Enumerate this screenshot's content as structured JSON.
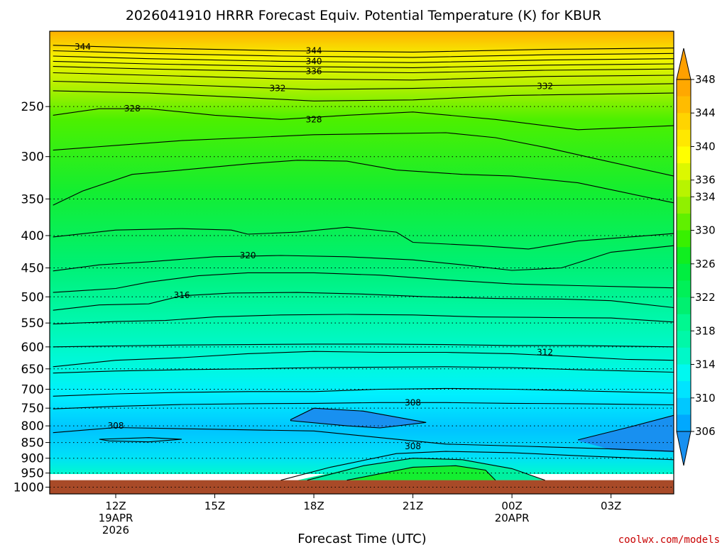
{
  "chart_data": {
    "type": "heatmap",
    "title": "2026041910 HRRR Forecast Equiv. Potential Temperature (K) for KBUR",
    "xlabel": "Forecast Time (UTC)",
    "ylabel": "",
    "credit": "coolwx.com/models",
    "x_ticks": [
      {
        "label": "12Z",
        "sub1": "19APR",
        "sub2": "2026",
        "hour": 12
      },
      {
        "label": "15Z",
        "sub1": "",
        "sub2": "",
        "hour": 15
      },
      {
        "label": "18Z",
        "sub1": "",
        "sub2": "",
        "hour": 18
      },
      {
        "label": "21Z",
        "sub1": "",
        "sub2": "",
        "hour": 21
      },
      {
        "label": "00Z",
        "sub1": "20APR",
        "sub2": "",
        "hour": 24
      },
      {
        "label": "03Z",
        "sub1": "",
        "sub2": "",
        "hour": 27
      }
    ],
    "xlim": [
      10,
      28.9
    ],
    "y_ticks": [
      250,
      300,
      350,
      400,
      450,
      500,
      550,
      600,
      650,
      700,
      750,
      800,
      850,
      900,
      950,
      1000
    ],
    "y_tick_labels": [
      "250",
      "300",
      "350",
      "400",
      "450",
      "500",
      "550",
      "600",
      "650",
      "700",
      "750",
      "800",
      "850",
      "900",
      "950",
      "1000"
    ],
    "ylim": [
      190,
      1025
    ],
    "y_scale": "log",
    "surface_pressure": 975,
    "grid": "dotted",
    "colorbar": {
      "levels": [
        306,
        308,
        310,
        312,
        314,
        316,
        318,
        320,
        322,
        324,
        326,
        328,
        330,
        332,
        334,
        336,
        338,
        340,
        342,
        344,
        346,
        348
      ],
      "labels": [
        "306",
        "310",
        "314",
        "318",
        "322",
        "326",
        "330",
        "334",
        "336",
        "340",
        "344",
        "348"
      ],
      "colors": [
        "#00a8ff",
        "#00c8ff",
        "#00e4ff",
        "#00f8f0",
        "#00f8c8",
        "#00f8a8",
        "#00f890",
        "#00f070",
        "#00f058",
        "#00ee40",
        "#10ee20",
        "#38f000",
        "#60f000",
        "#90f000",
        "#b8f400",
        "#dcf800",
        "#ffff00",
        "#ffe800",
        "#ffd400",
        "#ffbc00",
        "#ffa800"
      ],
      "below_color": "#1890f0",
      "above_color": "#ffa000"
    },
    "surface_fill": "#a84a28",
    "contours": [
      {
        "value": 344,
        "label": "344",
        "points": [
          [
            10.1,
            200
          ],
          [
            13,
            202
          ],
          [
            17,
            204
          ],
          [
            21,
            205
          ],
          [
            25,
            203
          ],
          [
            28.9,
            202
          ]
        ]
      },
      {
        "value": 342,
        "label": "",
        "points": [
          [
            10.1,
            204
          ],
          [
            13,
            206
          ],
          [
            17,
            208
          ],
          [
            21,
            209
          ],
          [
            25,
            207
          ],
          [
            28.9,
            206
          ]
        ]
      },
      {
        "value": 340,
        "label": "340",
        "points": [
          [
            10.1,
            208
          ],
          [
            13,
            210
          ],
          [
            17,
            212
          ],
          [
            21,
            213
          ],
          [
            25,
            211
          ],
          [
            28.9,
            210
          ]
        ]
      },
      {
        "value": 338,
        "label": "",
        "points": [
          [
            10.1,
            212
          ],
          [
            13,
            214
          ],
          [
            17,
            216
          ],
          [
            21,
            217
          ],
          [
            25,
            215
          ],
          [
            28.9,
            214
          ]
        ]
      },
      {
        "value": 336,
        "label": "336",
        "points": [
          [
            10.1,
            216
          ],
          [
            13,
            218
          ],
          [
            17,
            220
          ],
          [
            21,
            221
          ],
          [
            25,
            219
          ],
          [
            28.9,
            218
          ]
        ]
      },
      {
        "value": 334,
        "label": "",
        "points": [
          [
            10.1,
            221
          ],
          [
            13,
            223
          ],
          [
            17,
            226
          ],
          [
            21,
            227
          ],
          [
            25,
            224
          ],
          [
            28.9,
            223
          ]
        ]
      },
      {
        "value": 332,
        "label": "332",
        "points": [
          [
            10.1,
            228
          ],
          [
            13,
            230
          ],
          [
            16,
            233
          ],
          [
            18,
            235
          ],
          [
            21,
            234
          ],
          [
            24,
            232
          ],
          [
            28.9,
            230
          ]
        ]
      },
      {
        "value": 330,
        "label": "",
        "points": [
          [
            10.1,
            236
          ],
          [
            13,
            238
          ],
          [
            16,
            242
          ],
          [
            18,
            245
          ],
          [
            21,
            244
          ],
          [
            24,
            240
          ],
          [
            28.9,
            238
          ]
        ]
      },
      {
        "value": 328,
        "label": "328",
        "points": [
          [
            10.1,
            258
          ],
          [
            11.5,
            252
          ],
          [
            13,
            252
          ],
          [
            15,
            258
          ],
          [
            17,
            262
          ],
          [
            19,
            258
          ],
          [
            21,
            255
          ],
          [
            23.5,
            262
          ],
          [
            26,
            272
          ],
          [
            28.9,
            268
          ]
        ]
      },
      {
        "value": 326,
        "label": "",
        "points": [
          [
            10.1,
            293
          ],
          [
            12,
            288
          ],
          [
            14,
            283
          ],
          [
            16,
            280
          ],
          [
            18,
            277
          ],
          [
            20,
            276
          ],
          [
            22,
            275
          ],
          [
            23.5,
            280
          ],
          [
            25,
            290
          ],
          [
            26.5,
            302
          ],
          [
            28.9,
            322
          ]
        ]
      },
      {
        "value": 324,
        "label": "",
        "points": [
          [
            10.1,
            358
          ],
          [
            11,
            340
          ],
          [
            12.5,
            320
          ],
          [
            14,
            315
          ],
          [
            16,
            308
          ],
          [
            17.5,
            304
          ],
          [
            19,
            305
          ],
          [
            20.5,
            315
          ],
          [
            22.5,
            320
          ],
          [
            24,
            322
          ],
          [
            26,
            330
          ],
          [
            28.9,
            355
          ]
        ]
      },
      {
        "value": 322,
        "label": "",
        "points": [
          [
            10.1,
            402
          ],
          [
            12,
            392
          ],
          [
            14,
            390
          ],
          [
            15.5,
            392
          ],
          [
            16,
            398
          ],
          [
            17.5,
            395
          ],
          [
            19,
            388
          ],
          [
            20.5,
            395
          ],
          [
            21,
            410
          ],
          [
            23,
            415
          ],
          [
            24.5,
            420
          ],
          [
            26,
            408
          ],
          [
            28.9,
            397
          ]
        ]
      },
      {
        "value": 320,
        "label": "320",
        "points": [
          [
            10.1,
            455
          ],
          [
            11.5,
            445
          ],
          [
            13,
            440
          ],
          [
            15,
            432
          ],
          [
            17,
            430
          ],
          [
            19,
            432
          ],
          [
            21,
            437
          ],
          [
            22.5,
            445
          ],
          [
            24,
            454
          ],
          [
            25.5,
            450
          ],
          [
            27,
            425
          ],
          [
            28.9,
            415
          ]
        ]
      },
      {
        "value": 318,
        "label": "",
        "points": [
          [
            10.1,
            492
          ],
          [
            12,
            485
          ],
          [
            13,
            474
          ],
          [
            14.5,
            463
          ],
          [
            16,
            458
          ],
          [
            18,
            458
          ],
          [
            20,
            462
          ],
          [
            22,
            470
          ],
          [
            24,
            477
          ],
          [
            26,
            480
          ],
          [
            28.9,
            484
          ]
        ]
      },
      {
        "value": 316,
        "label": "316",
        "points": [
          [
            10.1,
            525
          ],
          [
            11.5,
            515
          ],
          [
            13,
            513
          ],
          [
            14,
            498
          ],
          [
            15.5,
            493
          ],
          [
            17.5,
            492
          ],
          [
            19.5,
            495
          ],
          [
            21.5,
            500
          ],
          [
            23.5,
            503
          ],
          [
            25.5,
            504
          ],
          [
            27,
            507
          ],
          [
            28.9,
            520
          ]
        ]
      },
      {
        "value": 314,
        "label": "",
        "points": [
          [
            10.1,
            552
          ],
          [
            12,
            547
          ],
          [
            13.5,
            545
          ],
          [
            15,
            538
          ],
          [
            17,
            534
          ],
          [
            19,
            533
          ],
          [
            21,
            534
          ],
          [
            23,
            538
          ],
          [
            25,
            539
          ],
          [
            27,
            540
          ],
          [
            28.9,
            548
          ]
        ]
      },
      {
        "value": 313,
        "label": "",
        "points": [
          [
            10.1,
            600
          ],
          [
            12,
            598
          ],
          [
            14,
            596
          ],
          [
            16,
            595
          ],
          [
            18,
            594
          ],
          [
            20,
            594
          ],
          [
            22,
            595
          ],
          [
            24,
            597
          ],
          [
            26,
            597
          ],
          [
            28.9,
            600
          ]
        ]
      },
      {
        "value": 312,
        "label": "312",
        "points": [
          [
            10.1,
            645
          ],
          [
            12,
            630
          ],
          [
            14,
            624
          ],
          [
            16,
            615
          ],
          [
            18,
            610
          ],
          [
            20,
            612
          ],
          [
            22,
            612
          ],
          [
            24,
            615
          ],
          [
            26,
            622
          ],
          [
            27.5,
            628
          ],
          [
            28.9,
            630
          ]
        ]
      },
      {
        "value": 311,
        "label": "",
        "points": [
          [
            10.1,
            660
          ],
          [
            12,
            655
          ],
          [
            14,
            652
          ],
          [
            16,
            650
          ],
          [
            18,
            647
          ],
          [
            20,
            646
          ],
          [
            22,
            645
          ],
          [
            24,
            647
          ],
          [
            26,
            652
          ],
          [
            28.9,
            658
          ]
        ]
      },
      {
        "value": 310,
        "label": "",
        "points": [
          [
            10.1,
            718
          ],
          [
            12,
            712
          ],
          [
            14,
            708
          ],
          [
            16,
            706
          ],
          [
            18,
            706
          ],
          [
            20,
            700
          ],
          [
            22,
            698
          ],
          [
            24,
            700
          ],
          [
            26,
            704
          ],
          [
            28.9,
            710
          ]
        ]
      },
      {
        "value": 308,
        "label": "308",
        "points": [
          [
            10.1,
            752
          ],
          [
            12,
            745
          ],
          [
            14,
            740
          ],
          [
            16,
            738
          ],
          [
            18,
            737
          ],
          [
            20,
            735
          ],
          [
            22,
            735
          ],
          [
            24,
            737
          ],
          [
            26,
            738
          ],
          [
            28.9,
            741
          ]
        ]
      }
    ],
    "labels_at": [
      {
        "text": "344",
        "hour": 11.0,
        "p": 201
      },
      {
        "text": "344",
        "hour": 18.0,
        "p": 204
      },
      {
        "text": "340",
        "hour": 18.0,
        "p": 212
      },
      {
        "text": "336",
        "hour": 18.0,
        "p": 220
      },
      {
        "text": "332",
        "hour": 16.9,
        "p": 234
      },
      {
        "text": "332",
        "hour": 25.0,
        "p": 232
      },
      {
        "text": "328",
        "hour": 12.5,
        "p": 252
      },
      {
        "text": "328",
        "hour": 18.0,
        "p": 262
      },
      {
        "text": "320",
        "hour": 16.0,
        "p": 430
      },
      {
        "text": "316",
        "hour": 14.0,
        "p": 497
      },
      {
        "text": "312",
        "hour": 25.0,
        "p": 612
      },
      {
        "text": "308",
        "hour": 21.0,
        "p": 735
      },
      {
        "text": "308",
        "hour": 12.0,
        "p": 800
      },
      {
        "text": "308",
        "hour": 21.0,
        "p": 862
      }
    ]
  }
}
